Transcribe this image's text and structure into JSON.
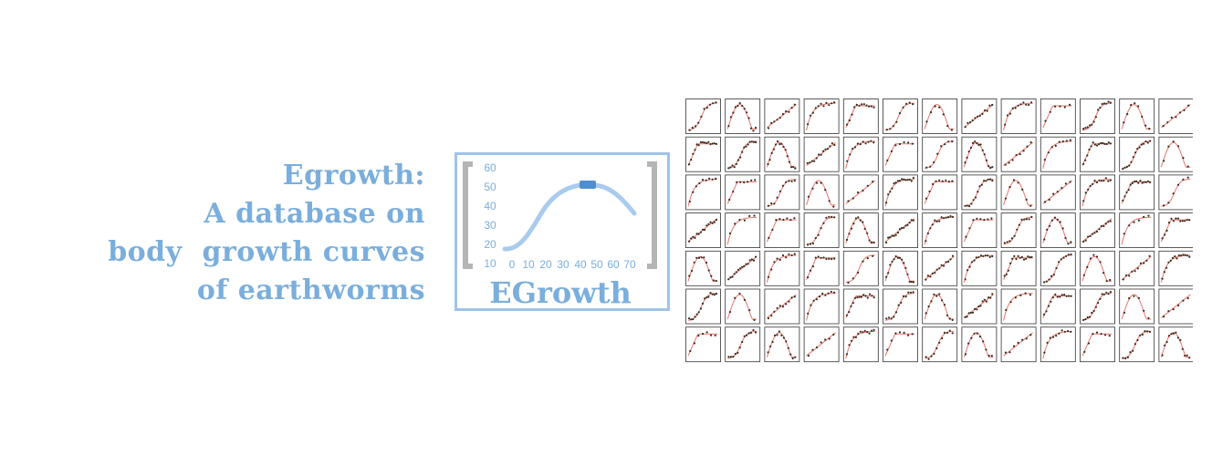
{
  "headline": {
    "lines": [
      "Egrowth:",
      "A database on",
      "body  growth curves",
      "of earthworms"
    ]
  },
  "logo": {
    "wordmark": "EGrowth",
    "y_ticks": [
      "60",
      "50",
      "40",
      "30",
      "20",
      "10"
    ],
    "x_ticks": [
      "0",
      "10",
      "20",
      "30",
      "40",
      "50",
      "60",
      "70"
    ],
    "color": "#7aaedc",
    "bracket_color": "#b5b5b5"
  },
  "thumbnail_grid": {
    "rows": 7,
    "columns": 13,
    "fit_line_color": "#e8756a",
    "point_color": "#3a2a1e"
  }
}
